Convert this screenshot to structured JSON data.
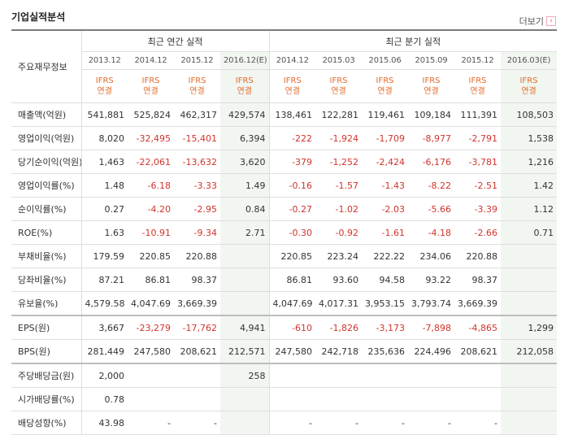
{
  "header": {
    "title": "기업실적분석",
    "more_label": "더보기",
    "more_icon": "chevron-right-icon"
  },
  "columns": {
    "row_header_label": "주요재무정보",
    "annual_group_label": "최근 연간 실적",
    "quarter_group_label": "최근 분기 실적",
    "periods": [
      "2013.12",
      "2014.12",
      "2015.12",
      "2016.12(E)",
      "2014.12",
      "2015.03",
      "2015.06",
      "2015.09",
      "2015.12",
      "2016.03(E)"
    ],
    "standard_line1": "IFRS",
    "standard_line2": "연결"
  },
  "colors": {
    "negative": "#d0342c",
    "estimate_bg": "#f1f6f1",
    "ifrs": "#e26b2b"
  },
  "rows": [
    {
      "label": "매출액(억원)",
      "values": [
        "541,881",
        "525,824",
        "462,317",
        "429,574",
        "138,461",
        "122,281",
        "119,461",
        "109,184",
        "111,391",
        "108,503"
      ]
    },
    {
      "label": "영업이익(억원)",
      "values": [
        "8,020",
        "-32,495",
        "-15,401",
        "6,394",
        "-222",
        "-1,924",
        "-1,709",
        "-8,977",
        "-2,791",
        "1,538"
      ]
    },
    {
      "label": "당기순이익(억원)",
      "values": [
        "1,463",
        "-22,061",
        "-13,632",
        "3,620",
        "-379",
        "-1,252",
        "-2,424",
        "-6,176",
        "-3,781",
        "1,216"
      ]
    },
    {
      "label": "영업이익률(%)",
      "values": [
        "1.48",
        "-6.18",
        "-3.33",
        "1.49",
        "-0.16",
        "-1.57",
        "-1.43",
        "-8.22",
        "-2.51",
        "1.42"
      ]
    },
    {
      "label": "순이익률(%)",
      "values": [
        "0.27",
        "-4.20",
        "-2.95",
        "0.84",
        "-0.27",
        "-1.02",
        "-2.03",
        "-5.66",
        "-3.39",
        "1.12"
      ]
    },
    {
      "label": "ROE(%)",
      "values": [
        "1.63",
        "-10.91",
        "-9.34",
        "2.71",
        "-0.30",
        "-0.92",
        "-1.61",
        "-4.18",
        "-2.66",
        "0.71"
      ]
    },
    {
      "label": "부채비율(%)",
      "values": [
        "179.59",
        "220.85",
        "220.88",
        "",
        "220.85",
        "223.24",
        "222.22",
        "234.06",
        "220.88",
        ""
      ]
    },
    {
      "label": "당좌비율(%)",
      "values": [
        "87.21",
        "86.81",
        "98.37",
        "",
        "86.81",
        "93.60",
        "94.58",
        "93.22",
        "98.37",
        ""
      ]
    },
    {
      "label": "유보율(%)",
      "values": [
        "4,579.58",
        "4,047.69",
        "3,669.39",
        "",
        "4,047.69",
        "4,017.31",
        "3,953.15",
        "3,793.74",
        "3,669.39",
        ""
      ]
    },
    {
      "label": "EPS(원)",
      "values": [
        "3,667",
        "-23,279",
        "-17,762",
        "4,941",
        "-610",
        "-1,826",
        "-3,173",
        "-7,898",
        "-4,865",
        "1,299"
      ]
    },
    {
      "label": "BPS(원)",
      "values": [
        "281,449",
        "247,580",
        "208,621",
        "212,571",
        "247,580",
        "242,718",
        "235,636",
        "224,496",
        "208,621",
        "212,058"
      ]
    },
    {
      "label": "주당배당금(원)",
      "values": [
        "2,000",
        "",
        "",
        "258",
        "",
        "",
        "",
        "",
        "",
        ""
      ]
    },
    {
      "label": "시가배당률(%)",
      "values": [
        "0.78",
        "",
        "",
        "",
        "",
        "",
        "",
        "",
        "",
        ""
      ]
    },
    {
      "label": "배당성향(%)",
      "values": [
        "43.98",
        "-",
        "-",
        "",
        "-",
        "-",
        "-",
        "-",
        "-",
        ""
      ]
    }
  ]
}
